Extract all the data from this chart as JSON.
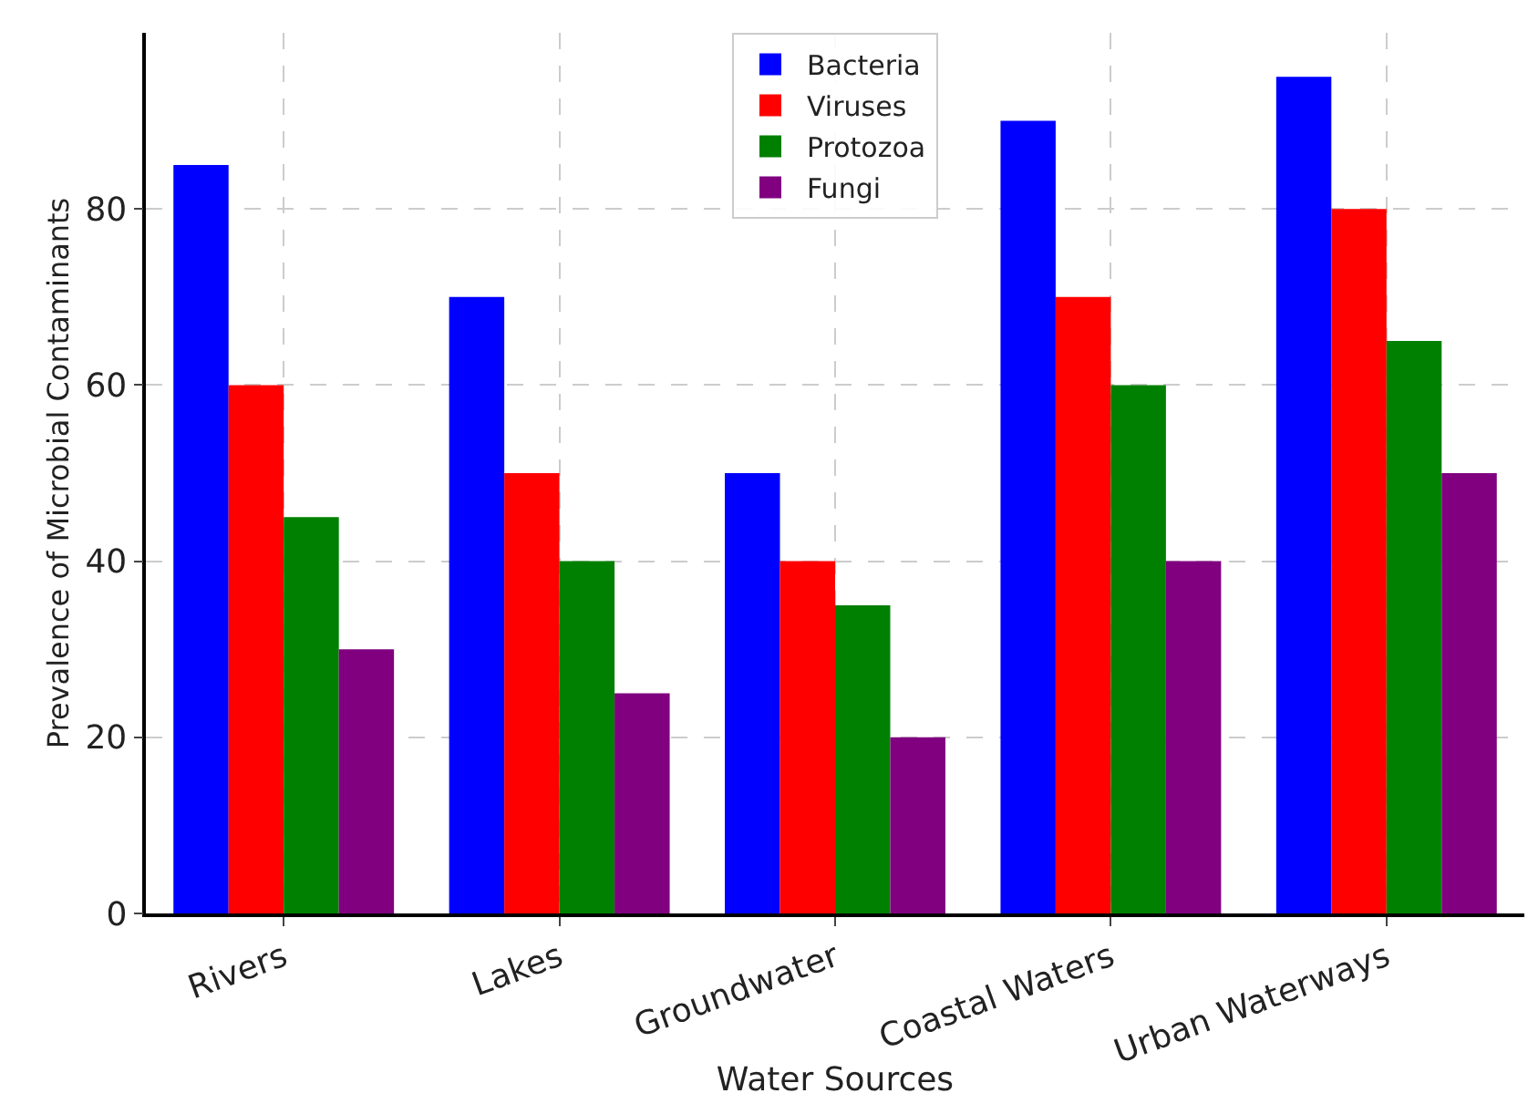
{
  "chart_data": {
    "type": "bar",
    "xlabel": "Water Sources",
    "ylabel": "Prevalence of Microbial Contaminants",
    "categories": [
      "Rivers",
      "Lakes",
      "Groundwater",
      "Coastal Waters",
      "Urban Waterways"
    ],
    "series": [
      {
        "name": "Bacteria",
        "color": "#0000ff",
        "values": [
          85,
          70,
          50,
          90,
          95
        ]
      },
      {
        "name": "Viruses",
        "color": "#ff0000",
        "values": [
          60,
          50,
          40,
          70,
          80
        ]
      },
      {
        "name": "Protozoa",
        "color": "#008000",
        "values": [
          45,
          40,
          35,
          60,
          65
        ]
      },
      {
        "name": "Fungi",
        "color": "#800080",
        "values": [
          30,
          25,
          20,
          40,
          50
        ]
      }
    ],
    "ylim": [
      0,
      100
    ],
    "yticks": [
      0,
      20,
      40,
      60,
      80
    ],
    "grid": true,
    "legend": "top"
  }
}
